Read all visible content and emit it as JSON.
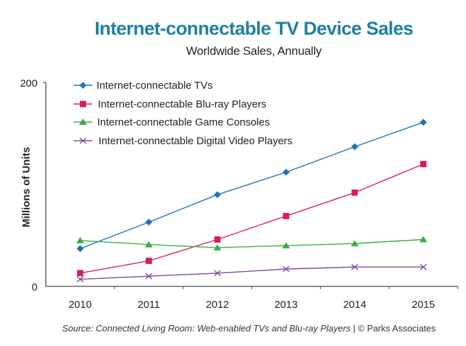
{
  "chart_data": {
    "type": "line",
    "title": "Internet-connectable TV Device Sales",
    "subtitle": "Worldwide Sales, Annually",
    "xlabel": "",
    "ylabel": "Millions of Units",
    "ylim": [
      0,
      200
    ],
    "y_ticks": [
      "0",
      "200"
    ],
    "categories": [
      "2010",
      "2011",
      "2012",
      "2013",
      "2014",
      "2015"
    ],
    "grid": false,
    "legend_position": "top-left",
    "series": [
      {
        "name": "Internet-connectable TVs",
        "color": "#1a72bb",
        "marker": "diamond",
        "values": [
          37,
          63,
          90,
          112,
          137,
          161
        ]
      },
      {
        "name": "Internet-connectable Blu-ray Players",
        "color": "#d81b5b",
        "marker": "square",
        "values": [
          13,
          25,
          46,
          69,
          92,
          120
        ]
      },
      {
        "name": "Internet-connectable Game Consoles",
        "color": "#3aad4a",
        "marker": "triangle",
        "values": [
          45,
          41,
          38,
          40,
          42,
          46
        ]
      },
      {
        "name": "Internet-connectable Digital Video Players",
        "color": "#7b4aa0",
        "marker": "x",
        "values": [
          7,
          10,
          13,
          17,
          19,
          19
        ]
      }
    ],
    "source": {
      "italic": "Source: Connected Living Room: Web-enabled TVs and Blu-ray Players",
      "plain": " | © Parks Associates"
    }
  }
}
